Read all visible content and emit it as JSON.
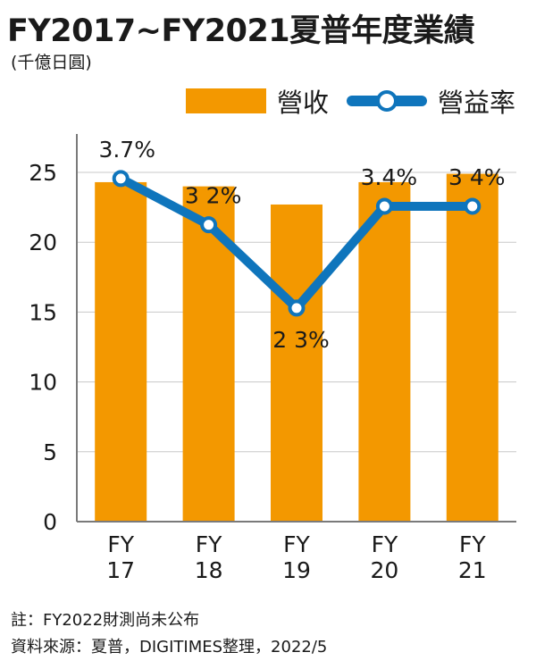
{
  "title": "FY2017~FY2021夏普年度業績",
  "unit": "(千億日圓)",
  "legend": {
    "bar_label": "營收",
    "line_label": "營益率"
  },
  "colors": {
    "bar": "#F39800",
    "line": "#0F75BC",
    "axis": "#7a7a7a",
    "grid": "#c8c8c8"
  },
  "chart_data": {
    "type": "bar+line",
    "categories": [
      "FY\n17",
      "FY\n18",
      "FY\n19",
      "FY\n20",
      "FY\n21"
    ],
    "y_ticks": [
      "0",
      "5",
      "10",
      "15",
      "20",
      "25"
    ],
    "ylim": [
      0,
      25
    ],
    "grid": true,
    "legend_position": "top-right",
    "series": [
      {
        "name": "營收",
        "type": "bar",
        "values": [
          24.3,
          24.0,
          22.7,
          24.3,
          24.9
        ]
      },
      {
        "name": "營益率",
        "type": "line",
        "values": [
          3.7,
          3.2,
          2.3,
          3.4,
          3.4
        ],
        "labels": [
          "3.7%",
          "3 2%",
          "2 3%",
          "3.4%",
          "3 4%"
        ]
      }
    ]
  },
  "notes": [
    "註：FY2022財測尚未公布",
    "資料來源：夏普，DIGITIMES整理，2022/5"
  ]
}
